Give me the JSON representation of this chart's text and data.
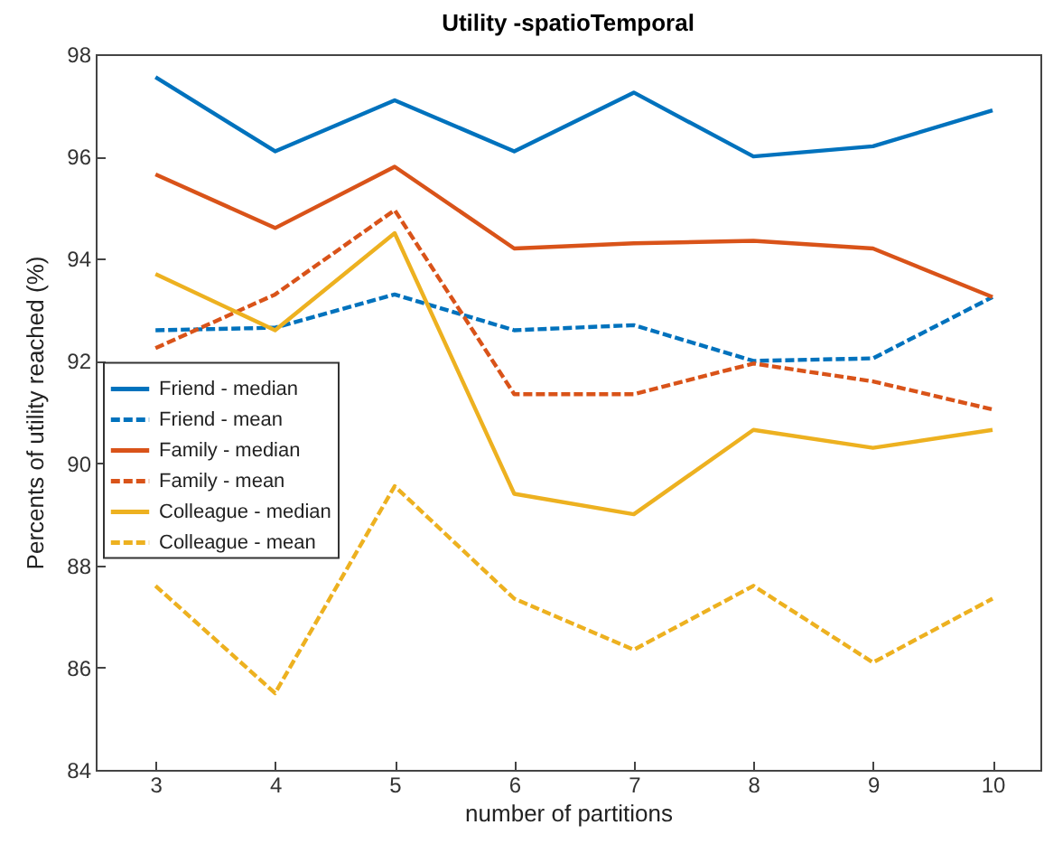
{
  "chart_data": {
    "type": "line",
    "title": "Utility -spatioTemporal",
    "xlabel": "number of partitions",
    "ylabel": "Percents of utility reached (%)",
    "x": [
      3,
      4,
      5,
      6,
      7,
      8,
      9,
      10
    ],
    "xlim": [
      2.5,
      10.4
    ],
    "xticks": [
      3,
      4,
      5,
      6,
      7,
      8,
      9,
      10
    ],
    "ylim": [
      84,
      98
    ],
    "yticks": [
      84,
      86,
      88,
      90,
      92,
      94,
      96,
      98
    ],
    "grid": false,
    "legend": "left",
    "marker": "none",
    "series": [
      {
        "name": "Friend - median",
        "color": "#0072bd",
        "line_style": "solid",
        "values": [
          97.55,
          96.1,
          97.1,
          96.1,
          97.25,
          96.0,
          96.2,
          96.9
        ]
      },
      {
        "name": "Friend - mean",
        "color": "#0072bd",
        "line_style": "dashed",
        "values": [
          92.6,
          92.65,
          93.3,
          92.6,
          92.7,
          92.0,
          92.05,
          93.25
        ]
      },
      {
        "name": "Family - median",
        "color": "#d95319",
        "line_style": "solid",
        "values": [
          95.65,
          94.6,
          95.8,
          94.2,
          94.3,
          94.35,
          94.2,
          93.25
        ]
      },
      {
        "name": "Family - mean",
        "color": "#d95319",
        "line_style": "dashed",
        "values": [
          92.25,
          93.3,
          94.95,
          91.35,
          91.35,
          91.95,
          91.6,
          91.05
        ]
      },
      {
        "name": "Colleague - median",
        "color": "#edb120",
        "line_style": "solid",
        "values": [
          93.7,
          92.6,
          94.5,
          89.4,
          89.0,
          90.65,
          90.3,
          90.65
        ]
      },
      {
        "name": "Colleague - mean",
        "color": "#edb120",
        "line_style": "dashed",
        "values": [
          87.6,
          85.5,
          89.55,
          87.35,
          86.35,
          87.6,
          86.1,
          87.35
        ]
      }
    ]
  }
}
